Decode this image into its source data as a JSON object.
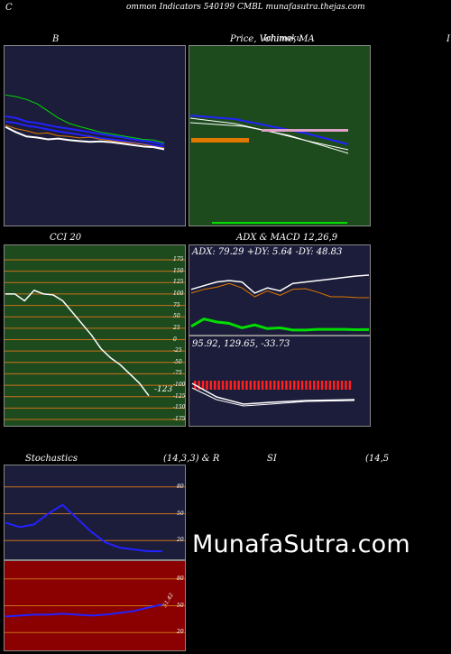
{
  "header": {
    "left_letter": "C",
    "title": "ommon  Indicators 540199 CMBL  munafasutra.thejas.com"
  },
  "panels": {
    "bollinger": {
      "title": "B"
    },
    "price": {
      "title": "Price,  Volume,  MA",
      "overlay": "Ichimoku"
    },
    "third_title": "I",
    "cci": {
      "title": "CCI 20",
      "current_value": "-123"
    },
    "adx": {
      "title": "ADX  & MACD 12,26,9",
      "readout": "ADX: 79.29  +DY: 5.64  -DY: 48.83"
    },
    "macd": {
      "readout": "95.92,  129.65,  -33.73"
    },
    "stochastics": {
      "title": "Stochastics",
      "params": "(14,3,3) & R"
    },
    "rsi": {
      "title": "SI",
      "params": "(14,5",
      "side_label": "51.42"
    }
  },
  "watermark": "MunafaSutra.com",
  "colors": {
    "navy_bg": "#1c1d3a",
    "green_bg": "#1e4b1e",
    "red_bg": "#8b0000",
    "orange_grid": "#c87018",
    "white_line": "#ffffff",
    "blue_line": "#2222ff",
    "green_line": "#00dd00",
    "orange_line": "#e07800",
    "pink_band": "#e0a0c8"
  },
  "chart_data": [
    {
      "type": "line",
      "title": "B",
      "series": [
        {
          "values": [
            36.5,
            36.0,
            35.2,
            34.0,
            32.0,
            30.0,
            28.5,
            27.6,
            26.8,
            26.0,
            25.5,
            25.0,
            24.5,
            24.0,
            23.8,
            23.0
          ]
        },
        {
          "values": [
            30.5,
            30.0,
            29.0,
            28.6,
            28.0,
            27.4,
            27.0,
            26.5,
            26.0,
            25.5,
            25.0,
            24.6,
            24.0,
            23.6,
            23.2,
            22.5
          ]
        },
        {
          "values": [
            29.0,
            28.6,
            27.8,
            27.4,
            26.8,
            26.2,
            25.8,
            25.3,
            24.8,
            24.3,
            24.0,
            23.6,
            23.1,
            22.7,
            22.3,
            21.8
          ]
        },
        {
          "values": [
            28.0,
            27.0,
            26.4,
            25.6,
            25.8,
            25.0,
            24.8,
            24.4,
            24.6,
            24.0,
            23.6,
            23.2,
            23.0,
            22.6,
            22.0,
            21.5
          ]
        },
        {
          "values": [
            27.5,
            26.0,
            24.8,
            24.5,
            24.0,
            24.2,
            23.8,
            23.5,
            23.3,
            23.4,
            23.2,
            22.8,
            22.4,
            22.0,
            21.8,
            21.2
          ]
        }
      ],
      "ylim": [
        0,
        50
      ]
    },
    {
      "type": "line",
      "title": "CCI 20",
      "series": [
        {
          "values": [
            100,
            100,
            85,
            108,
            100,
            98,
            85,
            60,
            35,
            10,
            -20,
            -40,
            -55,
            -75,
            -95,
            -123
          ]
        }
      ],
      "y_ticks": [
        175,
        150,
        125,
        100,
        75,
        50,
        25,
        0,
        -25,
        -50,
        -75,
        -100,
        -125,
        -150,
        -175
      ],
      "ylim": [
        -175,
        175
      ]
    },
    {
      "type": "line",
      "title": "ADX  & MACD 12,26,9",
      "series": [
        {
          "values": [
            60,
            65,
            70,
            72,
            70,
            55,
            62,
            58,
            68,
            70,
            72,
            74,
            76,
            78,
            79.29
          ]
        },
        {
          "values": [
            10,
            20,
            16,
            14,
            8,
            12,
            7,
            8,
            5,
            5,
            6,
            6,
            6,
            5.5,
            5.64
          ]
        },
        {
          "values": [
            55,
            60,
            63,
            68,
            62,
            50,
            58,
            52,
            60,
            61,
            56,
            50,
            50,
            49,
            48.83
          ]
        }
      ]
    },
    {
      "type": "line",
      "title": "Stochastics",
      "series": [
        {
          "values": [
            40,
            35,
            38,
            50,
            60,
            45,
            30,
            18,
            12,
            10,
            8,
            8
          ]
        }
      ],
      "y_ticks": [
        80,
        50,
        20
      ],
      "ylim": [
        0,
        100
      ]
    },
    {
      "type": "line",
      "title": "SI",
      "series": [
        {
          "values": [
            38,
            39,
            40,
            40,
            41,
            40,
            39,
            40,
            42,
            44,
            48,
            51.42
          ]
        }
      ],
      "y_ticks": [
        80,
        50,
        20
      ],
      "ylim": [
        0,
        100
      ]
    }
  ]
}
